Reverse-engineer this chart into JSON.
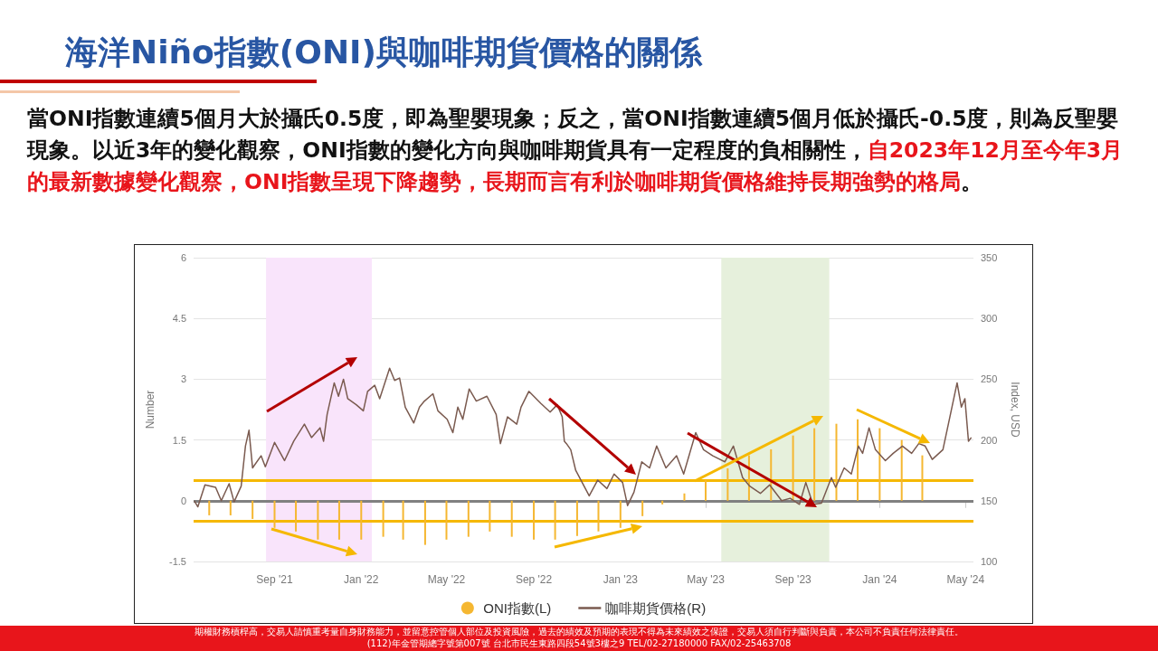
{
  "chart_data": {
    "type": "line",
    "title": "海洋Niño指數(ONI)與咖啡期貨價格的關係",
    "ylabel": "Number",
    "y2label": "Index, USD",
    "annotations": [
      "當ONI指數連續5個月大於攝氏0.5度，即為聖嬰現象；反之，當ONI指數連續5個月低於攝氏-0.5度，則為反聖嬰現象。以近3年的變化觀察，ONI指數的變化方向與咖啡期貨具有一定程度的負相關性，",
      "自2023年12月至今年3月的最新數據變化觀察，ONI指數呈現下降趨勢，長期而言有利於咖啡期貨價格維持長期強勢的格局",
      "。",
      "期權財務槓桿高，交易人請慎重考量自身財務能力，並留意控管個人部位及投資風險，過去的績效及預期的表現不得為未來績效之保證，交易人須自行判斷與負責，本公司不負責任何法律責任。",
      "(112)年金管期總字號第007號 台北市民生東路四段54號3樓之9 TEL/02-27180000 FAX/02-25463708"
    ],
    "xlim": [
      "2021-05-10",
      "2024-05-12"
    ],
    "xticks": [
      {
        "value": "2021-09-01",
        "label": "Sep '21"
      },
      {
        "value": "2022-01-01",
        "label": "Jan '22"
      },
      {
        "value": "2022-05-01",
        "label": "May '22"
      },
      {
        "value": "2022-09-01",
        "label": "Sep '22"
      },
      {
        "value": "2023-01-01",
        "label": "Jan '23"
      },
      {
        "value": "2023-05-01",
        "label": "May '23"
      },
      {
        "value": "2023-09-01",
        "label": "Sep '23"
      },
      {
        "value": "2024-01-01",
        "label": "Jan '24"
      },
      {
        "value": "2024-05-01",
        "label": "May '24"
      }
    ],
    "ylim": [
      -1.5,
      6
    ],
    "yticks": [
      -1.5,
      0,
      1.5,
      3,
      4.5,
      6
    ],
    "y2lim": [
      100,
      350
    ],
    "y2ticks": [
      100,
      150,
      200,
      250,
      300,
      350
    ],
    "grid": "y",
    "legend": "bottom",
    "marker": "none",
    "line_style": "solid",
    "ref_lines": [
      {
        "axis": "y",
        "value": 0.5,
        "color": "#f5b800"
      },
      {
        "axis": "y",
        "value": 0,
        "color": "#808080"
      },
      {
        "axis": "y",
        "value": -0.5,
        "color": "#f5b800"
      }
    ],
    "bands": [
      {
        "axis": "x",
        "from": "2021-08-20",
        "to": "2022-01-16",
        "color": "#f9e4fb"
      },
      {
        "axis": "x",
        "from": "2023-05-23",
        "to": "2023-10-22",
        "color": "#e6f0dc"
      }
    ],
    "series": [
      {
        "name": "ONI指數(L)",
        "type": "bar",
        "color": "#f5b731",
        "x": [
          "2021-06-01",
          "2021-07-01",
          "2021-08-01",
          "2021-09-01",
          "2021-10-01",
          "2021-11-01",
          "2021-12-01",
          "2022-01-01",
          "2022-02-01",
          "2022-03-01",
          "2022-04-01",
          "2022-05-01",
          "2022-06-01",
          "2022-07-01",
          "2022-08-01",
          "2022-09-01",
          "2022-10-01",
          "2022-11-01",
          "2022-12-01",
          "2023-01-01",
          "2023-02-01",
          "2023-03-01",
          "2023-04-01",
          "2023-05-01",
          "2023-06-01",
          "2023-07-01",
          "2023-08-01",
          "2023-09-01",
          "2023-10-01",
          "2023-11-01",
          "2023-12-01",
          "2024-01-01",
          "2024-02-01",
          "2024-03-01"
        ],
        "values": [
          -0.36,
          -0.36,
          -0.45,
          -0.67,
          -0.76,
          -0.96,
          -0.96,
          -0.96,
          -0.89,
          -0.96,
          -1.09,
          -0.96,
          -0.89,
          -0.76,
          -0.89,
          -0.96,
          -0.96,
          -0.87,
          -0.76,
          -0.67,
          -0.38,
          -0.09,
          0.18,
          0.51,
          0.8,
          1.12,
          1.27,
          1.61,
          1.79,
          1.9,
          2.01,
          1.79,
          1.5,
          1.12
        ]
      },
      {
        "name": "咖啡期貨價格(R)",
        "axis": "y2",
        "color": "#7a5a4f",
        "x": [
          "2021-05-11",
          "2021-05-16",
          "2021-05-26",
          "2021-06-10",
          "2021-06-18",
          "2021-06-29",
          "2021-07-06",
          "2021-07-16",
          "2021-07-22",
          "2021-07-27",
          "2021-08-01",
          "2021-08-13",
          "2021-08-19",
          "2021-09-01",
          "2021-09-15",
          "2021-09-28",
          "2021-10-13",
          "2021-10-23",
          "2021-11-04",
          "2021-11-09",
          "2021-11-14",
          "2021-11-24",
          "2021-11-30",
          "2021-12-07",
          "2021-12-13",
          "2021-12-25",
          "2022-01-04",
          "2022-01-10",
          "2022-01-20",
          "2022-01-27",
          "2022-02-10",
          "2022-02-17",
          "2022-02-24",
          "2022-03-04",
          "2022-03-16",
          "2022-03-24",
          "2022-03-31",
          "2022-04-12",
          "2022-04-19",
          "2022-05-02",
          "2022-05-10",
          "2022-05-17",
          "2022-05-24",
          "2022-06-02",
          "2022-06-12",
          "2022-06-27",
          "2022-07-10",
          "2022-07-16",
          "2022-07-26",
          "2022-08-08",
          "2022-08-14",
          "2022-08-25",
          "2022-09-11",
          "2022-09-24",
          "2022-10-04",
          "2022-10-11",
          "2022-10-14",
          "2022-10-17",
          "2022-10-23",
          "2022-10-30",
          "2022-11-18",
          "2022-11-30",
          "2022-12-13",
          "2022-12-23",
          "2023-01-04",
          "2023-01-11",
          "2023-01-20",
          "2023-01-31",
          "2023-02-11",
          "2023-02-21",
          "2023-03-06",
          "2023-03-21",
          "2023-03-31",
          "2023-04-17",
          "2023-04-28",
          "2023-05-11",
          "2023-05-28",
          "2023-06-09",
          "2023-06-22",
          "2023-07-02",
          "2023-07-17",
          "2023-07-30",
          "2023-08-16",
          "2023-08-28",
          "2023-09-10",
          "2023-09-19",
          "2023-09-29",
          "2023-10-11",
          "2023-10-25",
          "2023-10-31",
          "2023-11-12",
          "2023-11-22",
          "2023-12-02",
          "2023-12-08",
          "2023-12-17",
          "2023-12-26",
          "2024-01-09",
          "2024-01-20",
          "2024-02-02",
          "2024-02-15",
          "2024-02-25",
          "2024-03-05",
          "2024-03-15",
          "2024-03-30",
          "2024-04-07",
          "2024-04-19",
          "2024-04-25",
          "2024-04-30",
          "2024-05-05",
          "2024-05-09"
        ],
        "values": [
          150,
          145,
          163,
          161,
          150,
          164,
          149,
          162,
          195,
          208,
          177,
          187,
          178,
          198,
          183,
          199,
          213,
          202,
          210,
          199,
          221,
          247,
          236,
          250,
          234,
          229,
          224,
          240,
          245,
          234,
          259,
          249,
          251,
          227,
          214,
          227,
          232,
          238,
          224,
          217,
          206,
          227,
          217,
          242,
          232,
          236,
          221,
          197,
          219,
          213,
          227,
          240,
          230,
          223,
          229,
          219,
          199,
          197,
          192,
          175,
          154,
          167,
          160,
          172,
          165,
          146,
          157,
          182,
          177,
          195,
          177,
          187,
          172,
          206,
          192,
          187,
          182,
          195,
          169,
          162,
          156,
          163,
          150,
          152,
          147,
          165,
          147,
          148,
          169,
          161,
          177,
          172,
          195,
          189,
          210,
          192,
          183,
          189,
          195,
          189,
          197,
          195,
          184,
          192,
          214,
          247,
          227,
          234,
          199,
          202
        ]
      }
    ]
  }
}
